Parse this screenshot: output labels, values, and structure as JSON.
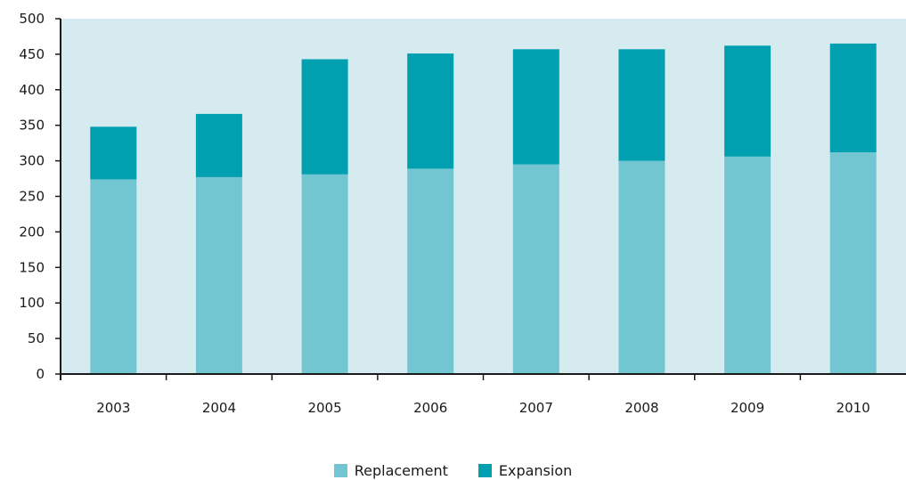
{
  "chart_data": {
    "type": "bar",
    "stacked": true,
    "categories": [
      "2003",
      "2004",
      "2005",
      "2006",
      "2007",
      "2008",
      "2009",
      "2010"
    ],
    "series": [
      {
        "name": "Replacement",
        "color": "#72c6d1",
        "values": [
          274,
          277,
          281,
          289,
          295,
          300,
          306,
          312
        ]
      },
      {
        "name": "Expansion",
        "color": "#00a0b0",
        "values": [
          74,
          89,
          162,
          162,
          162,
          157,
          156,
          153
        ]
      }
    ],
    "ylim": [
      0,
      500
    ],
    "yticks": [
      0,
      50,
      100,
      150,
      200,
      250,
      300,
      350,
      400,
      450,
      500
    ],
    "plot_background": "#d5ebef",
    "grid": false,
    "legend_position": "bottom-center"
  }
}
